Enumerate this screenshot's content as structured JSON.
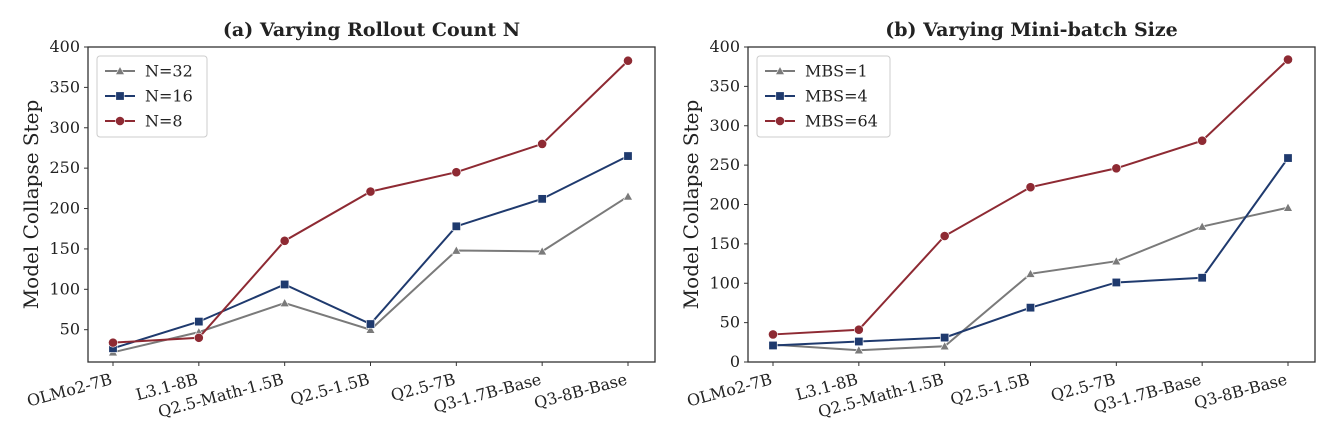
{
  "chart_data": [
    {
      "type": "line",
      "title": "(a) Varying Rollout Count N",
      "xlabel": "",
      "ylabel": "Model Collapse Step",
      "categories": [
        "OLMo2-7B",
        "L3.1-8B",
        "Q2.5-Math-1.5B",
        "Q2.5-1.5B",
        "Q2.5-7B",
        "Q3-1.7B-Base",
        "Q3-8B-Base"
      ],
      "ylim": [
        10,
        400
      ],
      "yticks": [
        50,
        100,
        150,
        200,
        250,
        300,
        350,
        400
      ],
      "legend_position": "top-left",
      "grid": false,
      "series": [
        {
          "name": "N=32",
          "color": "#7a7a7a",
          "marker": "triangle",
          "values": [
            22,
            47,
            83,
            50,
            148,
            147,
            215
          ]
        },
        {
          "name": "N=16",
          "color": "#1f3a6e",
          "marker": "square",
          "values": [
            27,
            60,
            106,
            57,
            178,
            212,
            265
          ]
        },
        {
          "name": "N=8",
          "color": "#8e2a33",
          "marker": "circle",
          "values": [
            34,
            40,
            160,
            221,
            245,
            280,
            383
          ]
        }
      ]
    },
    {
      "type": "line",
      "title": "(b) Varying Mini-batch Size",
      "xlabel": "",
      "ylabel": "Model Collapse Step",
      "categories": [
        "OLMo2-7B",
        "L3.1-8B",
        "Q2.5-Math-1.5B",
        "Q2.5-1.5B",
        "Q2.5-7B",
        "Q3-1.7B-Base",
        "Q3-8B-Base"
      ],
      "ylim": [
        0,
        400
      ],
      "yticks": [
        0,
        50,
        100,
        150,
        200,
        250,
        300,
        350,
        400
      ],
      "legend_position": "top-left",
      "grid": false,
      "series": [
        {
          "name": "MBS=1",
          "color": "#7a7a7a",
          "marker": "triangle",
          "values": [
            22,
            15,
            20,
            112,
            128,
            172,
            196
          ]
        },
        {
          "name": "MBS=4",
          "color": "#1f3a6e",
          "marker": "square",
          "values": [
            21,
            26,
            31,
            69,
            101,
            107,
            259
          ]
        },
        {
          "name": "MBS=64",
          "color": "#8e2a33",
          "marker": "circle",
          "values": [
            35,
            41,
            160,
            222,
            246,
            281,
            384
          ]
        }
      ]
    }
  ]
}
